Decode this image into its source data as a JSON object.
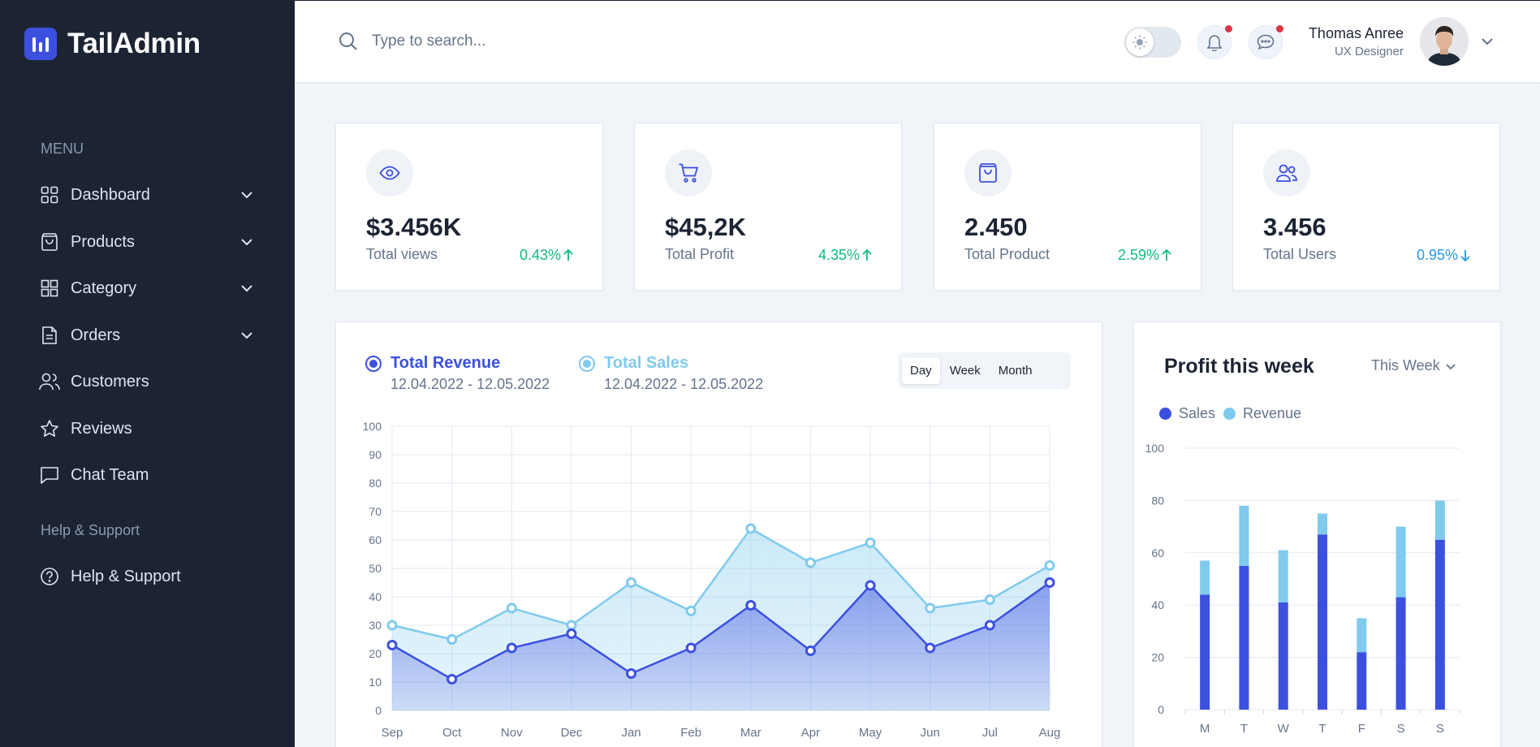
{
  "app": {
    "name": "TailAdmin"
  },
  "sidebar": {
    "menu_heading": "MENU",
    "items": [
      {
        "label": "Dashboard",
        "icon": "grid-icon",
        "has_submenu": true
      },
      {
        "label": "Products",
        "icon": "bag-icon",
        "has_submenu": true
      },
      {
        "label": "Category",
        "icon": "category-grid-icon",
        "has_submenu": true
      },
      {
        "label": "Orders",
        "icon": "document-icon",
        "has_submenu": true
      },
      {
        "label": "Customers",
        "icon": "users-icon",
        "has_submenu": false
      },
      {
        "label": "Reviews",
        "icon": "star-icon",
        "has_submenu": false
      },
      {
        "label": "Chat Team",
        "icon": "chat-icon",
        "has_submenu": false
      }
    ],
    "support_heading": "Help & Support",
    "support_items": [
      {
        "label": "Help & Support",
        "icon": "help-circle-icon"
      }
    ]
  },
  "header": {
    "search_placeholder": "Type to search...",
    "user": {
      "name": "Thomas Anree",
      "role": "UX Designer"
    }
  },
  "stats": [
    {
      "value": "$3.456K",
      "label": "Total views",
      "change": "0.43%",
      "direction": "up",
      "color": "#10b981",
      "icon": "eye-icon"
    },
    {
      "value": "$45,2K",
      "label": "Total Profit",
      "change": "4.35%",
      "direction": "up",
      "color": "#10b981",
      "icon": "cart-icon"
    },
    {
      "value": "2.450",
      "label": "Total Product",
      "change": "2.59%",
      "direction": "up",
      "color": "#10b981",
      "icon": "bag-icon"
    },
    {
      "value": "3.456",
      "label": "Total Users",
      "change": "0.95%",
      "direction": "down",
      "color": "#259ae6",
      "icon": "users-icon"
    }
  ],
  "revenue_card": {
    "legend": [
      {
        "title": "Total Revenue",
        "range": "12.04.2022 - 12.05.2022",
        "color": "#3c50e0"
      },
      {
        "title": "Total Sales",
        "range": "12.04.2022 - 12.05.2022",
        "color": "#80caee"
      }
    ],
    "periods": [
      "Day",
      "Week",
      "Month"
    ],
    "active_period": "Day"
  },
  "profit_card": {
    "title": "Profit this week",
    "period_select": "This Week",
    "legend": [
      {
        "label": "Sales",
        "color": "#3c50e0"
      },
      {
        "label": "Revenue",
        "color": "#80caee"
      }
    ]
  },
  "chart_data": [
    {
      "type": "area",
      "categories": [
        "Sep",
        "Oct",
        "Nov",
        "Dec",
        "Jan",
        "Feb",
        "Mar",
        "Apr",
        "May",
        "Jun",
        "Jul",
        "Aug"
      ],
      "series": [
        {
          "name": "Total Sales",
          "color": "#80caee",
          "values": [
            30,
            25,
            36,
            30,
            45,
            35,
            64,
            52,
            59,
            36,
            39,
            51
          ]
        },
        {
          "name": "Total Revenue",
          "color": "#3c50e0",
          "values": [
            23,
            11,
            22,
            27,
            13,
            22,
            37,
            21,
            44,
            22,
            30,
            45
          ]
        }
      ],
      "ylim": [
        0,
        100
      ],
      "yticks": [
        0,
        10,
        20,
        30,
        40,
        50,
        60,
        70,
        80,
        90,
        100
      ],
      "grid": true
    },
    {
      "type": "bar",
      "stacked": true,
      "categories": [
        "M",
        "T",
        "W",
        "T",
        "F",
        "S",
        "S"
      ],
      "series": [
        {
          "name": "Sales",
          "color": "#3c50e0",
          "values": [
            44,
            55,
            41,
            67,
            22,
            43,
            65
          ]
        },
        {
          "name": "Revenue",
          "color": "#80caee",
          "values": [
            13,
            23,
            20,
            8,
            13,
            27,
            15
          ]
        }
      ],
      "ylim": [
        0,
        100
      ],
      "yticks": [
        0,
        20,
        40,
        60,
        80,
        100
      ],
      "grid": true
    }
  ]
}
